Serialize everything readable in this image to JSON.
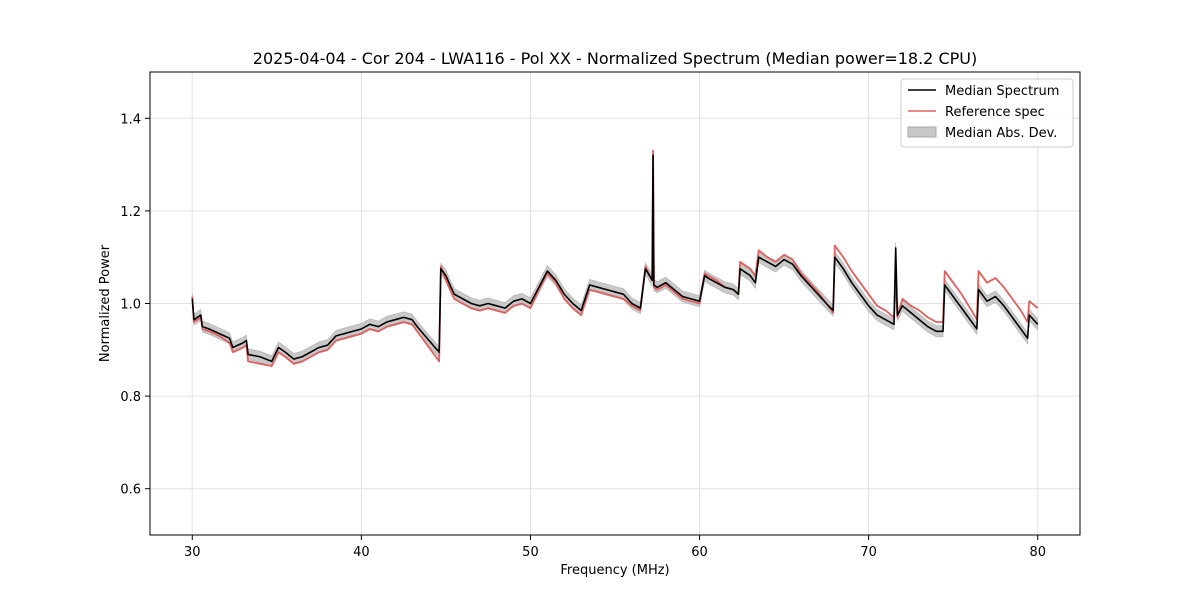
{
  "chart_data": {
    "type": "line",
    "title": "2025-04-04 - Cor 204 - LWA116 - Pol XX - Normalized Spectrum (Median power=18.2 CPU)",
    "xlabel": "Frequency (MHz)",
    "ylabel": "Normalized Power",
    "xlim": [
      27.5,
      82.5
    ],
    "ylim": [
      0.5,
      1.5
    ],
    "xticks": [
      30,
      40,
      50,
      60,
      70,
      80
    ],
    "yticks": [
      0.6,
      0.8,
      1.0,
      1.2,
      1.4
    ],
    "xtick_labels": [
      "30",
      "40",
      "50",
      "60",
      "70",
      "80"
    ],
    "ytick_labels": [
      "0.6",
      "0.8",
      "1.0",
      "1.2",
      "1.4"
    ],
    "grid": true,
    "legend_position": "top-right",
    "legend": [
      {
        "label": "Median Spectrum",
        "kind": "line",
        "color": "#000000"
      },
      {
        "label": "Reference spec",
        "kind": "line",
        "color": "#e06060"
      },
      {
        "label": "Median Abs. Dev.",
        "kind": "band",
        "color": "#c8c8c8"
      }
    ],
    "mad_halfwidth": 0.012,
    "series": [
      {
        "name": "Median Spectrum",
        "color": "#000000",
        "x": [
          30.0,
          30.1,
          30.5,
          30.6,
          31.0,
          31.6,
          32.2,
          32.4,
          33.0,
          33.2,
          33.3,
          34.0,
          34.7,
          35.1,
          35.5,
          36.0,
          36.5,
          37.0,
          37.5,
          38.0,
          38.5,
          39.0,
          39.5,
          40.0,
          40.5,
          41.0,
          41.5,
          42.0,
          42.5,
          43.0,
          43.3,
          44.0,
          44.6,
          44.7,
          45.0,
          45.3,
          45.5,
          46.0,
          46.5,
          47.0,
          47.5,
          48.0,
          48.5,
          49.0,
          49.5,
          50.0,
          50.5,
          51.0,
          51.5,
          52.0,
          52.5,
          53.0,
          53.5,
          54.0,
          54.5,
          55.0,
          55.5,
          56.0,
          56.5,
          56.8,
          57.2,
          57.25,
          57.3,
          57.5,
          58.0,
          58.5,
          59.0,
          59.5,
          60.0,
          60.3,
          60.5,
          61.0,
          61.5,
          62.0,
          62.3,
          62.4,
          63.0,
          63.3,
          63.5,
          64.0,
          64.5,
          65.0,
          65.5,
          66.0,
          66.5,
          67.0,
          67.5,
          67.9,
          68.0,
          68.5,
          69.0,
          69.5,
          70.0,
          70.5,
          71.0,
          71.5,
          71.6,
          71.7,
          72.0,
          72.5,
          73.0,
          73.5,
          74.0,
          74.4,
          74.5,
          75.0,
          75.5,
          76.0,
          76.4,
          76.5,
          77.0,
          77.5,
          78.0,
          78.5,
          79.0,
          79.4,
          79.5,
          80.0
        ],
        "values": [
          1.01,
          0.965,
          0.975,
          0.95,
          0.945,
          0.935,
          0.925,
          0.905,
          0.915,
          0.92,
          0.89,
          0.885,
          0.875,
          0.905,
          0.895,
          0.88,
          0.885,
          0.895,
          0.905,
          0.91,
          0.93,
          0.935,
          0.94,
          0.945,
          0.955,
          0.95,
          0.96,
          0.965,
          0.97,
          0.965,
          0.95,
          0.92,
          0.895,
          1.075,
          1.06,
          1.035,
          1.02,
          1.01,
          1.0,
          0.995,
          1.0,
          0.995,
          0.99,
          1.005,
          1.01,
          1.0,
          1.035,
          1.07,
          1.05,
          1.02,
          1.0,
          0.985,
          1.04,
          1.035,
          1.03,
          1.025,
          1.02,
          1.0,
          0.99,
          1.075,
          1.05,
          1.32,
          1.04,
          1.035,
          1.045,
          1.03,
          1.015,
          1.01,
          1.005,
          1.06,
          1.055,
          1.045,
          1.035,
          1.03,
          1.02,
          1.075,
          1.06,
          1.045,
          1.1,
          1.09,
          1.08,
          1.095,
          1.085,
          1.06,
          1.04,
          1.02,
          1.0,
          0.985,
          1.1,
          1.075,
          1.045,
          1.02,
          0.995,
          0.975,
          0.965,
          0.955,
          1.12,
          0.975,
          0.995,
          0.98,
          0.965,
          0.95,
          0.94,
          0.94,
          1.04,
          1.015,
          0.99,
          0.965,
          0.945,
          1.03,
          1.005,
          1.015,
          0.995,
          0.97,
          0.945,
          0.925,
          0.975,
          0.955
        ]
      },
      {
        "name": "Reference spec",
        "color": "#e06060",
        "x": [
          30.0,
          30.1,
          30.5,
          30.6,
          31.0,
          31.6,
          32.2,
          32.4,
          33.0,
          33.2,
          33.3,
          34.0,
          34.7,
          35.1,
          35.5,
          36.0,
          36.5,
          37.0,
          37.5,
          38.0,
          38.5,
          39.0,
          39.5,
          40.0,
          40.5,
          41.0,
          41.5,
          42.0,
          42.5,
          43.0,
          43.3,
          44.0,
          44.6,
          44.7,
          45.0,
          45.3,
          45.5,
          46.0,
          46.5,
          47.0,
          47.5,
          48.0,
          48.5,
          49.0,
          49.5,
          50.0,
          50.5,
          51.0,
          51.5,
          52.0,
          52.5,
          53.0,
          53.5,
          54.0,
          54.5,
          55.0,
          55.5,
          56.0,
          56.5,
          56.8,
          57.2,
          57.25,
          57.3,
          57.5,
          58.0,
          58.5,
          59.0,
          59.5,
          60.0,
          60.3,
          60.5,
          61.0,
          61.5,
          62.0,
          62.3,
          62.4,
          63.0,
          63.3,
          63.5,
          64.0,
          64.5,
          65.0,
          65.5,
          66.0,
          66.5,
          67.0,
          67.5,
          67.9,
          68.0,
          68.5,
          69.0,
          69.5,
          70.0,
          70.5,
          71.0,
          71.5,
          71.6,
          71.7,
          72.0,
          72.5,
          73.0,
          73.5,
          74.0,
          74.4,
          74.5,
          75.0,
          75.5,
          76.0,
          76.4,
          76.5,
          77.0,
          77.5,
          78.0,
          78.5,
          79.0,
          79.4,
          79.5,
          80.0
        ],
        "values": [
          1.015,
          0.96,
          0.97,
          0.945,
          0.94,
          0.93,
          0.915,
          0.895,
          0.905,
          0.91,
          0.875,
          0.87,
          0.865,
          0.895,
          0.885,
          0.87,
          0.875,
          0.885,
          0.895,
          0.9,
          0.92,
          0.925,
          0.93,
          0.935,
          0.945,
          0.94,
          0.95,
          0.955,
          0.96,
          0.955,
          0.94,
          0.905,
          0.875,
          1.08,
          1.05,
          1.025,
          1.01,
          1.0,
          0.99,
          0.985,
          0.99,
          0.985,
          0.98,
          0.995,
          1.0,
          0.99,
          1.03,
          1.065,
          1.045,
          1.01,
          0.99,
          0.975,
          1.03,
          1.025,
          1.02,
          1.015,
          1.01,
          0.995,
          0.985,
          1.08,
          1.05,
          1.33,
          1.035,
          1.03,
          1.04,
          1.025,
          1.01,
          1.005,
          1.0,
          1.065,
          1.06,
          1.05,
          1.035,
          1.03,
          1.02,
          1.09,
          1.075,
          1.06,
          1.115,
          1.1,
          1.09,
          1.105,
          1.095,
          1.065,
          1.045,
          1.025,
          1.0,
          0.98,
          1.125,
          1.1,
          1.07,
          1.045,
          1.02,
          0.995,
          0.985,
          0.97,
          1.06,
          0.97,
          1.01,
          0.995,
          0.985,
          0.97,
          0.96,
          0.96,
          1.07,
          1.045,
          1.02,
          0.99,
          0.965,
          1.07,
          1.045,
          1.055,
          1.035,
          1.01,
          0.985,
          0.96,
          1.005,
          0.99
        ]
      }
    ]
  }
}
